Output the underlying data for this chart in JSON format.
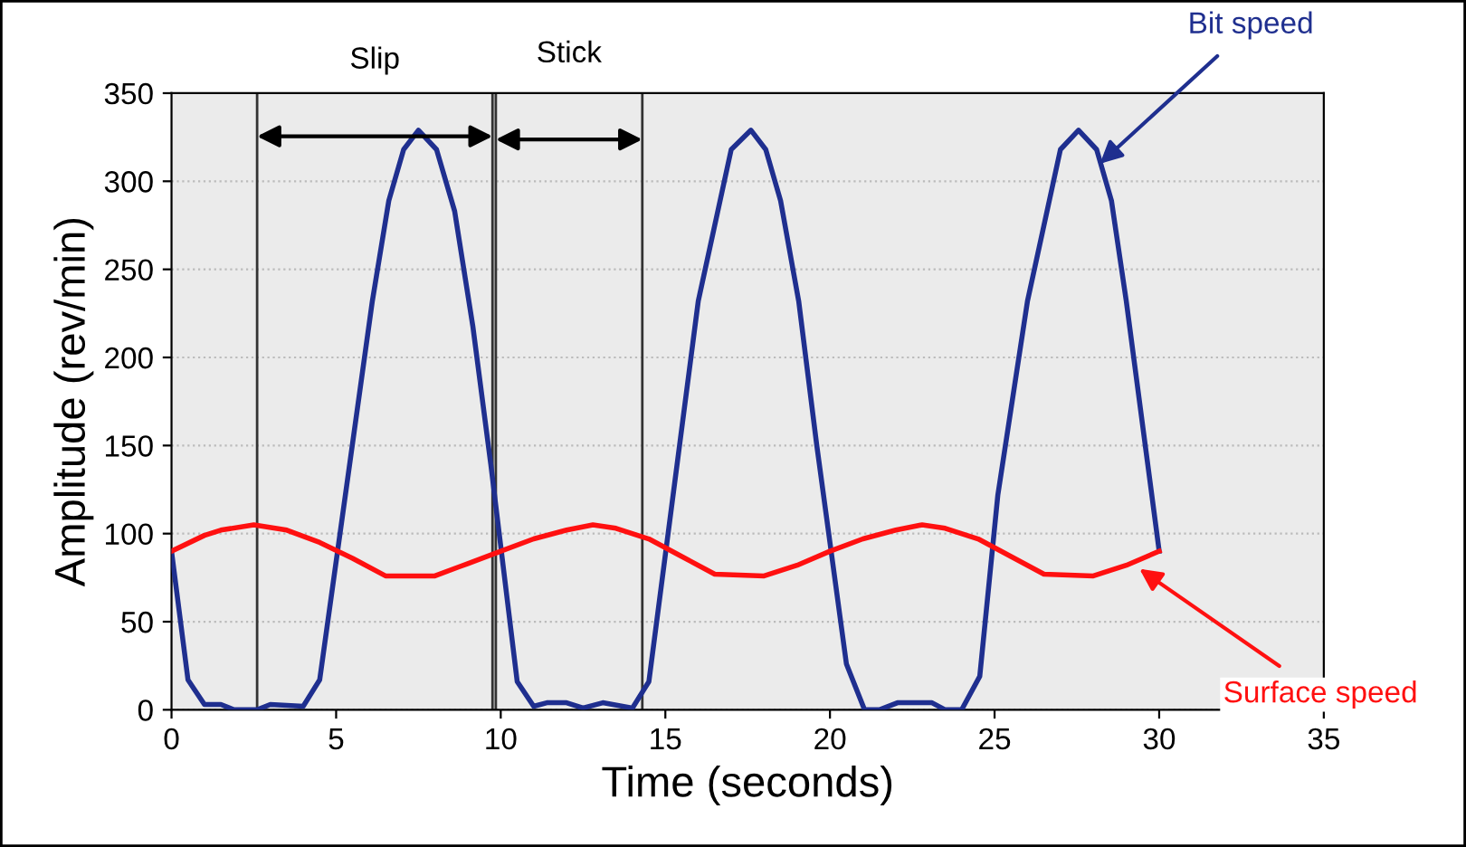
{
  "chart_data": {
    "type": "line",
    "xlabel": "Time (seconds)",
    "ylabel": "Amplitude (rev/min)",
    "xlim": [
      0,
      35
    ],
    "xticks": [
      0,
      5,
      10,
      15,
      20,
      25,
      30,
      35
    ],
    "ylim": [
      0,
      350
    ],
    "yticks": [
      0,
      50,
      100,
      150,
      200,
      250,
      300,
      350
    ],
    "grid": "y",
    "series": [
      {
        "color": "#1f2f8f",
        "x": [
          0,
          0.5,
          1.0,
          1.5,
          1.9,
          2.6,
          3.0,
          4.0,
          4.5,
          6.1,
          6.6,
          7.05,
          7.5,
          8.05,
          8.6,
          9.15,
          9.7,
          10.5,
          11.0,
          11.4,
          12.0,
          12.5,
          13.1,
          14.0,
          14.5,
          16.0,
          17.0,
          17.6,
          18.05,
          18.5,
          19.05,
          19.6,
          20.5,
          21.05,
          21.5,
          22.05,
          23.1,
          23.5,
          24.0,
          24.55,
          25.1,
          26.0,
          27.0,
          27.55,
          28.1,
          28.55,
          29.0,
          30.0
        ],
        "values": [
          90,
          17,
          3,
          3,
          0,
          0,
          3,
          2,
          17,
          232,
          289,
          318,
          329,
          318,
          283,
          218,
          139,
          16,
          2,
          4,
          4,
          1,
          4,
          1,
          16,
          232,
          318,
          329,
          318,
          289,
          232,
          150,
          26,
          0,
          0,
          4,
          4,
          0,
          0,
          19,
          122,
          232,
          318,
          329,
          318,
          289,
          232,
          90
        ]
      },
      {
        "color": "#ff1010",
        "x": [
          0,
          1,
          1.5,
          2.5,
          3.5,
          4.5,
          5.5,
          6.5,
          8,
          9,
          10,
          11,
          12,
          12.8,
          13.5,
          14.5,
          15.5,
          16.5,
          18,
          19,
          20,
          21,
          22,
          22.8,
          23.5,
          24.5,
          25.5,
          26.5,
          28,
          29,
          30
        ],
        "values": [
          90,
          99,
          102,
          105,
          102,
          95,
          86,
          76,
          76,
          83,
          90,
          97,
          102,
          105,
          103,
          97,
          87,
          77,
          76,
          82,
          90,
          97,
          102,
          105,
          103,
          97,
          87,
          77,
          76,
          82,
          90
        ]
      }
    ],
    "ref_lines": [
      {
        "axis": "x",
        "value": 2.6
      },
      {
        "axis": "x",
        "value": 9.75
      },
      {
        "axis": "x",
        "value": 9.85
      },
      {
        "axis": "x",
        "value": 14.3
      }
    ],
    "annotations": [
      {
        "text": "Bit speed",
        "x": 28.2,
        "y": 310
      },
      {
        "text": "Surface speed",
        "x": 29.4,
        "y": 80
      },
      "Slip",
      "Stick"
    ]
  }
}
